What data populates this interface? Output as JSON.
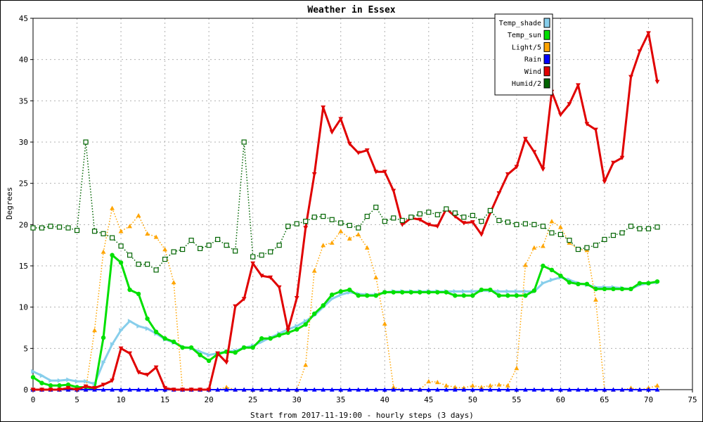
{
  "chart_data": {
    "type": "line",
    "title": "Weather in Essex",
    "xlabel": "Start from 2017-11-19:00 - hourly steps (3 days)",
    "ylabel": "Degrees",
    "xlim": [
      0,
      75
    ],
    "ylim": [
      0,
      45
    ],
    "xticks": [
      0,
      5,
      10,
      15,
      20,
      25,
      30,
      35,
      40,
      45,
      50,
      55,
      60,
      65,
      70,
      75
    ],
    "yticks": [
      0,
      5,
      10,
      15,
      20,
      25,
      30,
      35,
      40,
      45
    ],
    "grid": true,
    "legend_position": "top-right",
    "series": [
      {
        "name": "Temp_shade",
        "color": "#87ceeb",
        "style": "solid",
        "marker": "triangle-right",
        "width": 3,
        "values": [
          2.2,
          1.7,
          1.1,
          1.1,
          1.2,
          1.0,
          1.0,
          0.7,
          3.3,
          5.5,
          7.2,
          8.3,
          7.7,
          7.4,
          6.8,
          6.1,
          5.7,
          5.2,
          5.0,
          4.6,
          4.2,
          4.4,
          4.6,
          4.7,
          5.1,
          5.3,
          5.8,
          6.3,
          6.8,
          7.3,
          7.7,
          8.3,
          9.0,
          10.0,
          11.0,
          11.5,
          11.8,
          11.6,
          11.5,
          11.5,
          11.8,
          11.9,
          11.9,
          11.9,
          11.9,
          11.9,
          11.9,
          11.9,
          11.9,
          11.9,
          11.9,
          12.0,
          12.0,
          11.9,
          11.9,
          11.9,
          11.9,
          11.9,
          12.9,
          13.3,
          13.6,
          13.3,
          12.9,
          12.7,
          12.4,
          12.4,
          12.4,
          12.3,
          12.2,
          12.7,
          12.9,
          13.0
        ]
      },
      {
        "name": "Temp_sun",
        "color": "#00e000",
        "style": "solid",
        "marker": "circle",
        "width": 3,
        "values": [
          1.5,
          0.8,
          0.5,
          0.5,
          0.6,
          0.3,
          0.3,
          0.1,
          6.3,
          16.3,
          15.4,
          12.1,
          11.6,
          8.6,
          7.0,
          6.2,
          5.8,
          5.1,
          5.1,
          4.2,
          3.5,
          4.3,
          4.6,
          4.5,
          5.1,
          5.1,
          6.2,
          6.2,
          6.6,
          6.9,
          7.3,
          7.9,
          9.2,
          10.2,
          11.5,
          11.9,
          12.1,
          11.4,
          11.4,
          11.4,
          11.8,
          11.8,
          11.8,
          11.8,
          11.8,
          11.8,
          11.8,
          11.8,
          11.4,
          11.4,
          11.4,
          12.1,
          12.1,
          11.4,
          11.4,
          11.4,
          11.4,
          12.0,
          15.0,
          14.5,
          13.8,
          13.0,
          12.8,
          12.8,
          12.2,
          12.2,
          12.2,
          12.2,
          12.2,
          12.9,
          12.9,
          13.1
        ]
      },
      {
        "name": "Light/5",
        "color": "#ffa500",
        "style": "dotted",
        "marker": "triangle-up",
        "width": 1.5,
        "values": [
          0.0,
          0.0,
          0.0,
          0.0,
          0.0,
          0.0,
          0.0,
          7.2,
          16.7,
          22.0,
          19.2,
          19.8,
          21.1,
          18.9,
          18.5,
          17.0,
          13.0,
          0.0,
          0.0,
          0.0,
          0.0,
          0.0,
          0.3,
          0.0,
          0.0,
          0.0,
          0.0,
          0.0,
          0.0,
          0.0,
          0.0,
          3.0,
          14.4,
          17.5,
          17.8,
          19.2,
          18.3,
          18.8,
          17.2,
          13.6,
          8.0,
          0.3,
          0.0,
          0.0,
          0.0,
          1.0,
          0.9,
          0.5,
          0.3,
          0.2,
          0.5,
          0.3,
          0.5,
          0.6,
          0.5,
          2.6,
          15.1,
          17.2,
          17.4,
          20.4,
          19.7,
          17.8,
          17.0,
          16.9,
          10.9,
          0.0,
          0.0,
          0.0,
          0.2,
          0.0,
          0.2,
          0.5
        ]
      },
      {
        "name": "Rain",
        "color": "#0000ff",
        "style": "solid",
        "marker": "triangle-up",
        "width": 2,
        "values": [
          0,
          0,
          0,
          0,
          0,
          0,
          0,
          0,
          0,
          0,
          0,
          0,
          0,
          0,
          0,
          0,
          0,
          0,
          0,
          0,
          0,
          0,
          0,
          0,
          0,
          0,
          0,
          0,
          0,
          0,
          0,
          0,
          0,
          0,
          0,
          0,
          0,
          0,
          0,
          0,
          0,
          0,
          0,
          0,
          0,
          0,
          0,
          0,
          0,
          0,
          0,
          0,
          0,
          0,
          0,
          0,
          0,
          0,
          0,
          0,
          0,
          0,
          0,
          0,
          0,
          0,
          0,
          0,
          0,
          0,
          0,
          0
        ]
      },
      {
        "name": "Wind",
        "color": "#e00000",
        "style": "solid",
        "marker": "triangle-down",
        "width": 3,
        "values": [
          0.0,
          0.0,
          0.0,
          0.0,
          0.2,
          0.0,
          0.4,
          0.2,
          0.6,
          1.1,
          5.0,
          4.4,
          2.1,
          1.8,
          2.7,
          0.2,
          0.0,
          0.0,
          0.0,
          0.0,
          0.0,
          4.4,
          3.3,
          10.1,
          11.0,
          15.3,
          13.8,
          13.6,
          12.4,
          7.2,
          11.1,
          19.6,
          26.1,
          34.2,
          31.2,
          32.8,
          29.8,
          28.7,
          29.0,
          26.4,
          26.4,
          24.1,
          20.0,
          20.8,
          20.6,
          20.0,
          19.8,
          21.9,
          21.0,
          20.2,
          20.3,
          18.8,
          21.4,
          23.8,
          26.1,
          27.0,
          30.4,
          28.8,
          26.7,
          36.1,
          33.3,
          34.6,
          36.9,
          32.2,
          31.5,
          25.2,
          27.5,
          28.1,
          37.9,
          41.0,
          43.2,
          37.3
        ]
      },
      {
        "name": "Humid/2",
        "color": "#006400",
        "style": "dotted",
        "marker": "square",
        "width": 1.5,
        "values": [
          19.6,
          19.6,
          19.8,
          19.7,
          19.6,
          19.3,
          30.0,
          19.2,
          18.9,
          18.4,
          17.4,
          16.3,
          15.2,
          15.2,
          14.5,
          15.8,
          16.7,
          17.0,
          18.1,
          17.1,
          17.5,
          18.2,
          17.5,
          16.8,
          30.0,
          16.1,
          16.3,
          16.7,
          17.5,
          19.8,
          20.1,
          20.4,
          20.9,
          21.0,
          20.6,
          20.2,
          19.9,
          19.6,
          21.0,
          22.1,
          20.4,
          20.8,
          20.5,
          20.9,
          21.3,
          21.5,
          21.2,
          21.9,
          21.4,
          20.9,
          21.1,
          20.4,
          21.7,
          20.5,
          20.3,
          20.0,
          20.1,
          20.0,
          19.8,
          19.0,
          18.8,
          18.1,
          17.0,
          17.2,
          17.5,
          18.2,
          18.7,
          19.0,
          19.8,
          19.5,
          19.5,
          19.7
        ]
      }
    ]
  }
}
